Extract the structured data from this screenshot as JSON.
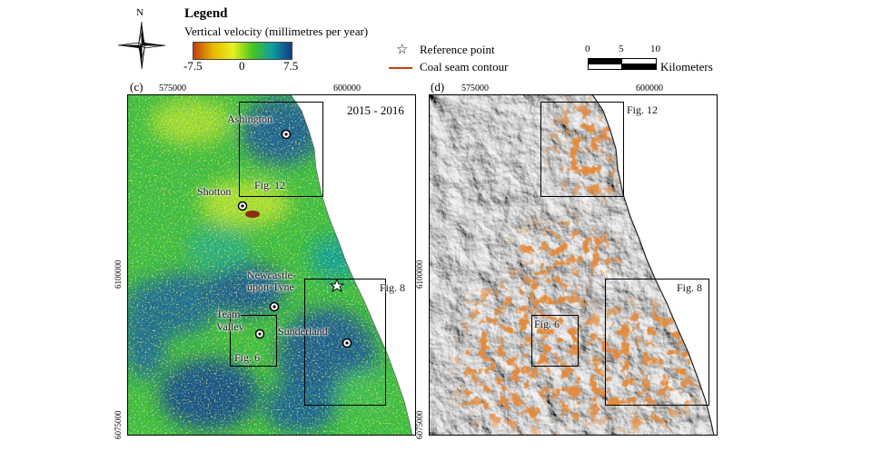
{
  "north_arrow": {
    "letter": "N",
    "icon": "compass-rose-icon"
  },
  "legend": {
    "title": "Legend",
    "velocity_label": "Vertical velocity (millimetres per year)",
    "ramp_min": "-7.5",
    "ramp_mid": "0",
    "ramp_max": "7.5",
    "ramp_colors": [
      "#c2410c",
      "#e6b800",
      "#e8f020",
      "#49c61f",
      "#0f9ea0",
      "#123b83"
    ],
    "reference_point": "Reference point",
    "coal_seam": "Coal seam contour",
    "coal_color": "#c2410c"
  },
  "scalebar": {
    "ticks": [
      "0",
      "5",
      "10"
    ],
    "unit": "Kilometers"
  },
  "panel_c": {
    "label": "(c)",
    "years": "2015 - 2016",
    "x_ticks": [
      "575000",
      "600000"
    ],
    "y_ticks": [
      "6100000",
      "6075000"
    ],
    "places": {
      "ashington": "Ashington",
      "shotton": "Shotton",
      "newcastle_1": "Newcastle-",
      "newcastle_2": "upon-Tyne",
      "team_1": "Team",
      "team_2": "Valley",
      "sunderland": "Sunderland"
    },
    "boxes": {
      "fig12": "Fig. 12",
      "fig8": "Fig. 8",
      "fig6": "Fig. 6"
    }
  },
  "panel_d": {
    "label": "(d)",
    "x_ticks": [
      "575000",
      "600000"
    ],
    "y_ticks": [
      "6100000",
      "6075000"
    ],
    "boxes": {
      "fig12": "Fig. 12",
      "fig8": "Fig. 8",
      "fig6": "Fig. 6"
    }
  }
}
